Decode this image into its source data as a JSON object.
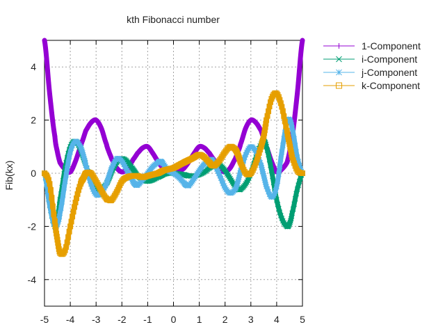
{
  "chart_data": {
    "type": "line",
    "title": "kth Fibonacci number",
    "xlabel": "",
    "ylabel": "Fib(kx)",
    "xlim": [
      -5,
      5
    ],
    "ylim": [
      -5,
      5
    ],
    "x_ticks": [
      -5,
      -4,
      -3,
      -2,
      -1,
      0,
      1,
      2,
      3,
      4,
      5
    ],
    "y_ticks": [
      -4,
      -2,
      0,
      2,
      4
    ],
    "x_tick_labels": [
      "-5",
      "-4",
      "-3",
      "-2",
      "-1",
      "0",
      "1",
      "2",
      "3",
      "4",
      "5"
    ],
    "y_tick_labels": [
      "-4",
      "-2",
      "0",
      "2",
      "4"
    ],
    "grid": true,
    "legend_position": "outside-top-right",
    "x": [
      -5.0,
      -4.8,
      -4.6,
      -4.5,
      -4.4,
      -4.2,
      -4.0,
      -3.8,
      -3.6,
      -3.5,
      -3.4,
      -3.2,
      -3.0,
      -2.8,
      -2.6,
      -2.5,
      -2.4,
      -2.2,
      -2.0,
      -1.8,
      -1.6,
      -1.5,
      -1.4,
      -1.2,
      -1.0,
      -0.8,
      -0.6,
      -0.5,
      -0.4,
      -0.2,
      0.0,
      0.2,
      0.4,
      0.5,
      0.6,
      0.8,
      1.0,
      1.2,
      1.4,
      1.5,
      1.6,
      1.8,
      2.0,
      2.2,
      2.4,
      2.5,
      2.6,
      2.8,
      3.0,
      3.2,
      3.4,
      3.5,
      3.6,
      3.8,
      4.0,
      4.2,
      4.4,
      4.5,
      4.6,
      4.8,
      5.0
    ],
    "series": [
      {
        "name": "1-Component",
        "color": "#9400d3",
        "marker": "plus",
        "values": [
          5.0,
          3.0,
          1.4,
          0.8,
          0.4,
          0.15,
          0.05,
          0.45,
          1.0,
          1.3,
          1.6,
          1.9,
          2.0,
          1.7,
          1.1,
          0.8,
          0.55,
          0.2,
          0.05,
          0.15,
          0.45,
          0.6,
          0.75,
          0.95,
          1.0,
          0.75,
          0.45,
          0.3,
          0.18,
          0.05,
          0.0,
          0.05,
          0.18,
          0.3,
          0.45,
          0.75,
          1.0,
          0.95,
          0.75,
          0.6,
          0.45,
          0.15,
          0.05,
          0.2,
          0.55,
          0.8,
          1.1,
          1.7,
          2.0,
          1.9,
          1.6,
          1.3,
          1.0,
          0.45,
          0.05,
          0.15,
          0.4,
          0.8,
          1.4,
          3.0,
          5.0
        ]
      },
      {
        "name": "i-Component",
        "color": "#009e73",
        "marker": "cross",
        "values": [
          0.0,
          -1.2,
          -2.0,
          -1.7,
          -1.0,
          0.2,
          1.0,
          1.2,
          0.9,
          0.6,
          0.3,
          -0.3,
          -0.6,
          -0.6,
          -0.4,
          -0.2,
          0.05,
          0.4,
          0.55,
          0.45,
          0.2,
          0.05,
          -0.1,
          -0.25,
          -0.3,
          -0.25,
          -0.15,
          -0.1,
          -0.05,
          0.0,
          0.0,
          -0.02,
          -0.05,
          -0.08,
          -0.1,
          -0.1,
          -0.05,
          0.05,
          0.2,
          0.3,
          0.35,
          0.3,
          0.1,
          -0.2,
          -0.5,
          -0.6,
          -0.6,
          -0.4,
          0.0,
          0.6,
          1.1,
          1.2,
          1.0,
          0.1,
          -1.0,
          -1.7,
          -2.0,
          -1.9,
          -1.5,
          -0.6,
          0.0
        ]
      },
      {
        "name": "j-Component",
        "color": "#56b4e9",
        "marker": "star",
        "values": [
          0.0,
          -1.2,
          -2.0,
          -1.9,
          -1.5,
          -0.3,
          0.8,
          1.2,
          1.0,
          0.7,
          0.3,
          -0.4,
          -0.8,
          -0.75,
          -0.4,
          -0.1,
          0.2,
          0.55,
          0.45,
          0.1,
          -0.25,
          -0.4,
          -0.45,
          -0.25,
          0.0,
          0.25,
          0.4,
          0.45,
          0.35,
          0.1,
          0.0,
          -0.15,
          -0.35,
          -0.45,
          -0.45,
          -0.2,
          0.1,
          0.35,
          0.5,
          0.5,
          0.3,
          -0.1,
          -0.55,
          -0.75,
          -0.6,
          -0.3,
          0.1,
          0.7,
          1.0,
          0.8,
          0.3,
          -0.1,
          -0.5,
          -0.9,
          -0.5,
          0.8,
          1.9,
          2.0,
          1.7,
          0.6,
          0.0
        ]
      },
      {
        "name": "k-Component",
        "color": "#e69f00",
        "marker": "square",
        "values": [
          0.0,
          -0.4,
          -1.8,
          -2.5,
          -3.0,
          -2.9,
          -2.0,
          -1.1,
          -0.4,
          -0.2,
          0.0,
          0.0,
          -0.3,
          -0.65,
          -0.95,
          -1.0,
          -1.0,
          -0.7,
          -0.3,
          -0.15,
          -0.1,
          -0.1,
          -0.1,
          -0.15,
          -0.1,
          -0.05,
          0.0,
          0.05,
          0.1,
          0.15,
          0.2,
          0.3,
          0.4,
          0.45,
          0.5,
          0.6,
          0.7,
          0.6,
          0.4,
          0.3,
          0.3,
          0.5,
          0.8,
          1.0,
          0.9,
          0.7,
          0.4,
          0.0,
          0.0,
          0.4,
          1.0,
          1.4,
          2.0,
          2.8,
          3.0,
          2.5,
          1.6,
          1.1,
          0.6,
          0.1,
          0.0
        ]
      }
    ]
  }
}
